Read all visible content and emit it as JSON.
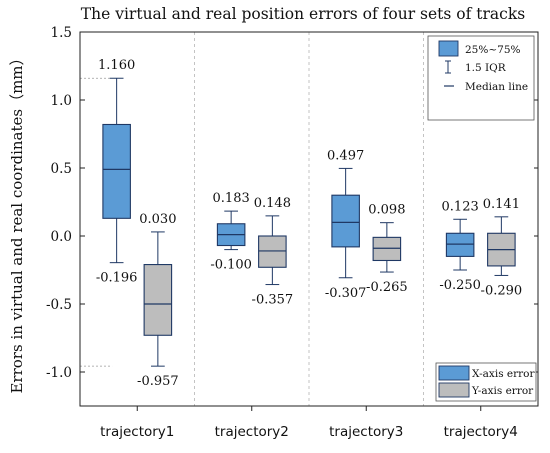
{
  "chart_data": {
    "type": "box",
    "title": "The virtual and real position errors of four sets of tracks",
    "xlabel": "",
    "ylabel": "Errors in virtual and real coordinates（mm）",
    "ylim": [
      -1.25,
      1.5
    ],
    "yticks": [
      1.5,
      1.0,
      0.5,
      0.0,
      -0.5,
      -1.0
    ],
    "ytick_labels": [
      "1.5",
      "1.0",
      "0.5",
      "0.0",
      "-0.5",
      "-1.0"
    ],
    "categories": [
      "trajectory1",
      "trajectory2",
      "trajectory3",
      "trajectory4"
    ],
    "series": [
      {
        "name": "X-axis error",
        "color": "#5b9bd5",
        "boxes": [
          {
            "whisker_low": -0.196,
            "q1": 0.13,
            "median": 0.49,
            "q3": 0.82,
            "whisker_high": 1.16
          },
          {
            "whisker_low": -0.1,
            "q1": -0.07,
            "median": 0.01,
            "q3": 0.09,
            "whisker_high": 0.183
          },
          {
            "whisker_low": -0.307,
            "q1": -0.08,
            "median": 0.1,
            "q3": 0.3,
            "whisker_high": 0.497
          },
          {
            "whisker_low": -0.25,
            "q1": -0.15,
            "median": -0.06,
            "q3": 0.02,
            "whisker_high": 0.123
          }
        ],
        "labels_high": [
          "1.160",
          "0.183",
          "0.497",
          "0.123"
        ],
        "labels_low": [
          "-0.196",
          "-0.100",
          "-0.307",
          "-0.250"
        ]
      },
      {
        "name": "Y-axis error",
        "color": "#bdbdbd",
        "boxes": [
          {
            "whisker_low": -0.957,
            "q1": -0.73,
            "median": -0.5,
            "q3": -0.21,
            "whisker_high": 0.03
          },
          {
            "whisker_low": -0.357,
            "q1": -0.23,
            "median": -0.11,
            "q3": 0.0,
            "whisker_high": 0.148
          },
          {
            "whisker_low": -0.265,
            "q1": -0.18,
            "median": -0.09,
            "q3": -0.01,
            "whisker_high": 0.098
          },
          {
            "whisker_low": -0.29,
            "q1": -0.22,
            "median": -0.1,
            "q3": 0.02,
            "whisker_high": 0.141
          }
        ],
        "labels_high": [
          "0.030",
          "0.148",
          "0.098",
          "0.141"
        ],
        "labels_low": [
          "-0.957",
          "-0.357",
          "-0.265",
          "-0.290"
        ]
      }
    ],
    "legend_top": {
      "box_label": "25%~75%",
      "iqr_label": "1.5 IQR",
      "median_label": "Median line",
      "position": "top-right"
    },
    "legend_bottom_position": "bottom-right",
    "reference_lines": [
      1.16,
      -0.957
    ],
    "grid": false
  }
}
